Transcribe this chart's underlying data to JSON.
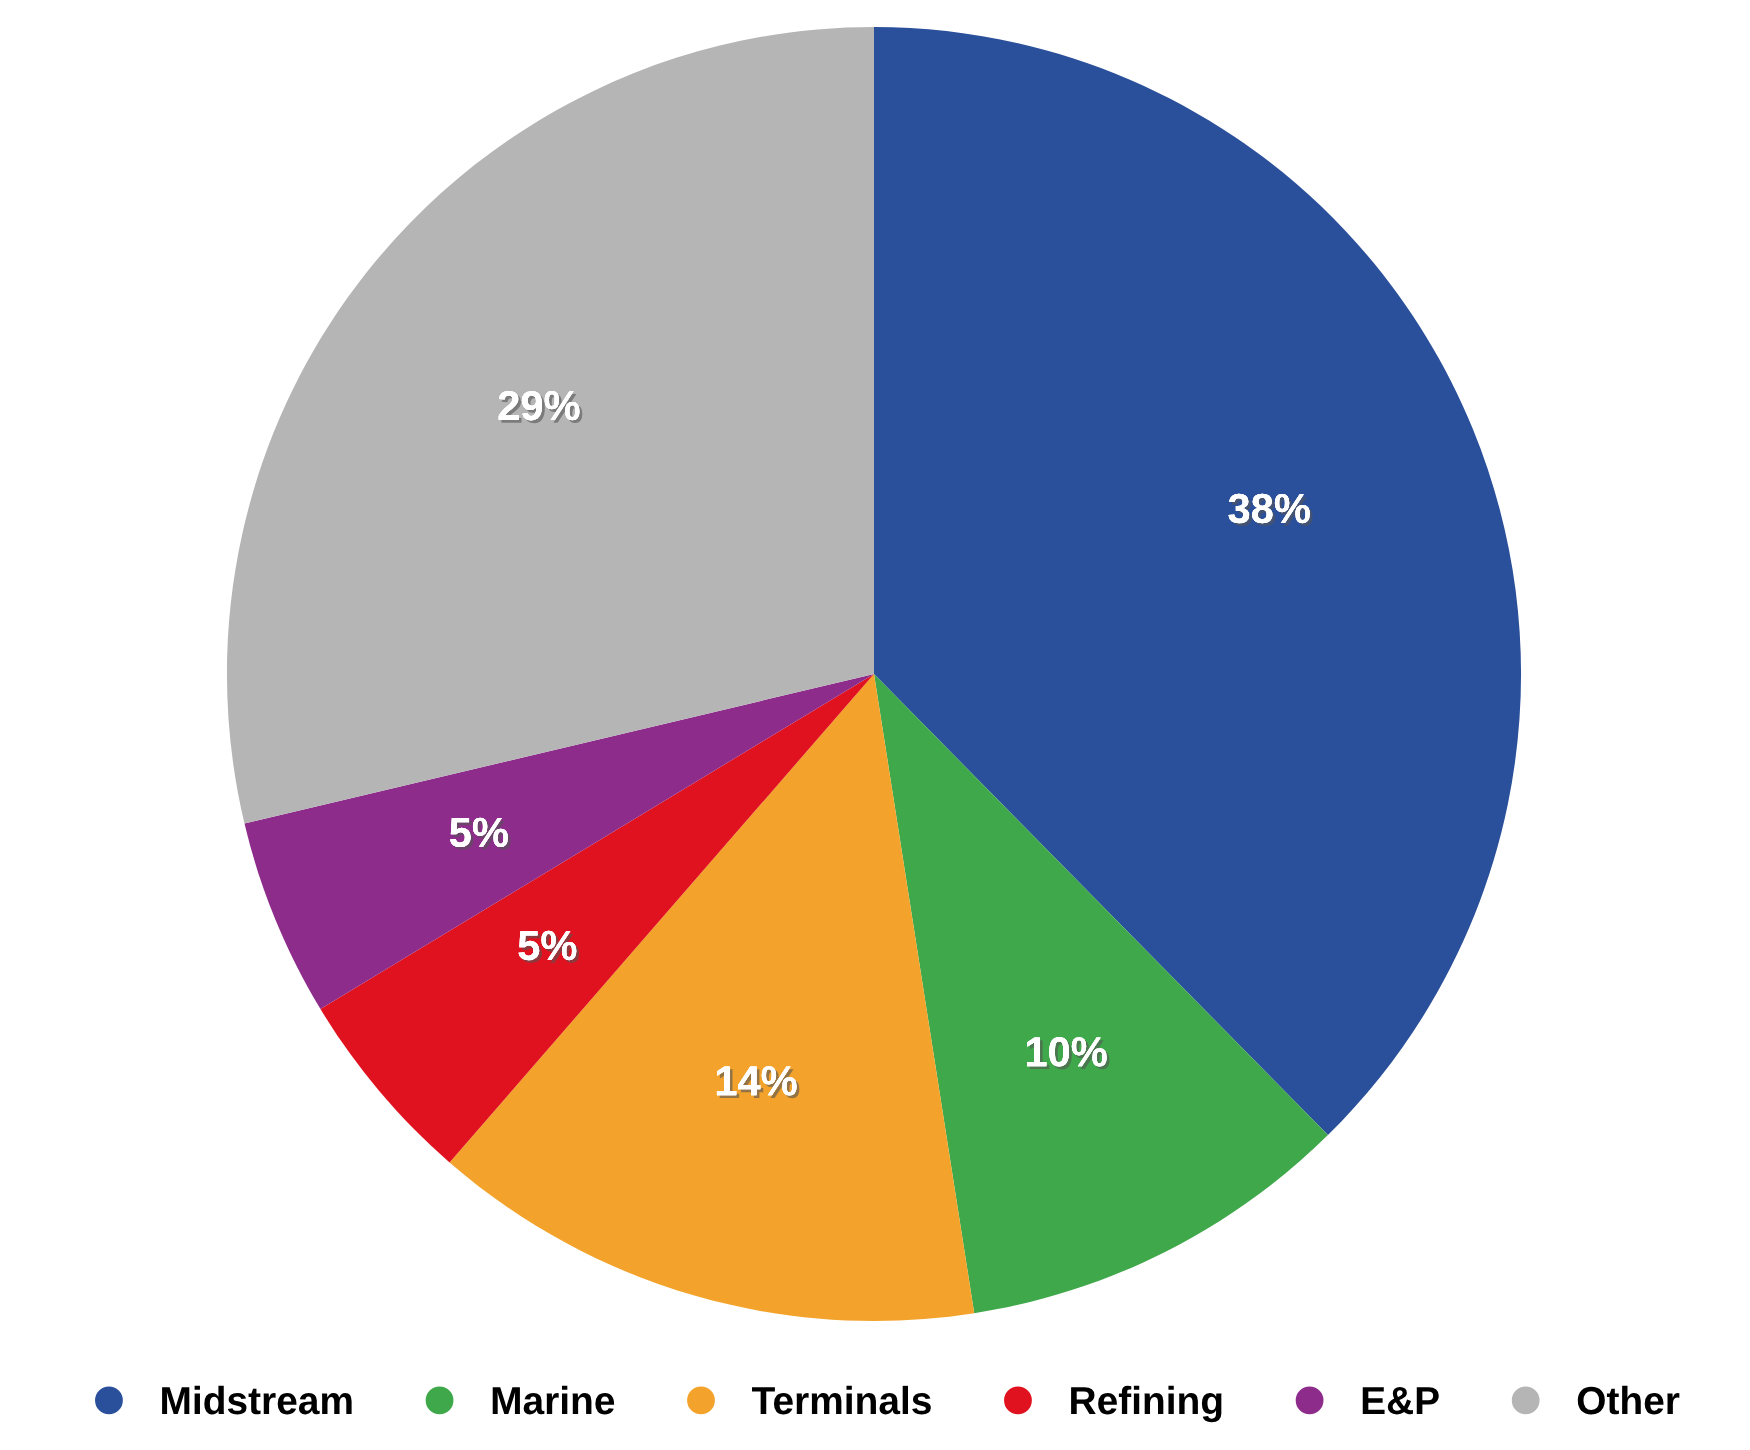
{
  "chart_data": {
    "type": "pie",
    "categories": [
      "Midstream",
      "Marine",
      "Terminals",
      "Refining",
      "E&P",
      "Other"
    ],
    "values": [
      38,
      10,
      14,
      5,
      5,
      29
    ],
    "colors": [
      "#2b509b",
      "#3fa84a",
      "#f3a32b",
      "#e1121f",
      "#8d2c8b",
      "#b5b5b5"
    ],
    "value_labels": [
      "38%",
      "10%",
      "14%",
      "5%",
      "5%",
      "29%"
    ],
    "legend": "bottom"
  }
}
